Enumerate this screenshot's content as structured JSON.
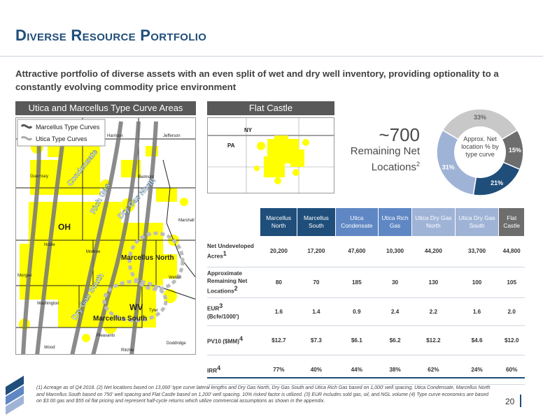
{
  "slide": {
    "title": "Diverse Resource Portfolio",
    "subtitle": "Attractive portfolio of diverse assets with an even split of wet and dry well inventory, providing optionality to a constantly evolving commodity price environment",
    "page_number": "20"
  },
  "left_panel": {
    "header": "Utica and Marcellus Type Curve Areas",
    "legend": [
      "Marcellus Type Curves",
      "Utica Type Curves"
    ],
    "map_labels": {
      "condensate": "Condensate",
      "rich_gas": "Rich Gas",
      "dry_gas_north": "Dry Gas North",
      "dry_gas_south": "Dry Gas South",
      "marcellus_north": "Marcellus North",
      "marcellus_south": "Marcellus South",
      "oh": "OH",
      "wv": "WV",
      "counties": [
        "Harrison",
        "Jefferson",
        "Guernsey",
        "Belmont",
        "Marshall",
        "Noble",
        "Monroe",
        "Wetzel",
        "Washington",
        "Tyler",
        "Pleasants",
        "Ritchie",
        "Doddridge",
        "Wood",
        "Morgan"
      ]
    }
  },
  "right_panel": {
    "header": "Flat Castle",
    "map_labels": [
      "NY",
      "PA"
    ],
    "remaining_value": "~700",
    "remaining_label_1": "Remaining Net",
    "remaining_label_2": "Locations",
    "remaining_sup": "2"
  },
  "donut": {
    "center_label": "Approx. Net location % by type curve",
    "slices": [
      {
        "label": "33%",
        "value": 33,
        "color": "#c8c8c8"
      },
      {
        "label": "15%",
        "value": 15,
        "color": "#6d6d6d"
      },
      {
        "label": "21%",
        "value": 21,
        "color": "#1f4e7a"
      },
      {
        "label": "31%",
        "value": 31,
        "color": "#9fb3d6"
      }
    ]
  },
  "table": {
    "columns": [
      "Marcellus North",
      "Marcellus South",
      "Utica Condensate",
      "Utica Rich Gas",
      "Utica Dry Gas North",
      "Utica Dry Gas South",
      "Flat Castle"
    ],
    "rows": [
      {
        "label": "Net Undeveloped Acres",
        "sup": "1",
        "values": [
          "20,200",
          "17,200",
          "47,600",
          "10,300",
          "44,200",
          "33,700",
          "44,800"
        ]
      },
      {
        "label": "Approximate Remaining Net Locations",
        "sup": "2",
        "values": [
          "80",
          "70",
          "185",
          "30",
          "130",
          "100",
          "105"
        ]
      },
      {
        "label": "EUR",
        "sup": "3",
        "label_suffix": "(Bcfe/1000')",
        "values": [
          "1.6",
          "1.4",
          "0.9",
          "2.4",
          "2.2",
          "1.6",
          "2.0"
        ]
      },
      {
        "label": "PV10 ($MM)",
        "sup": "4",
        "values": [
          "$12.7",
          "$7.3",
          "$6.1",
          "$6.2",
          "$12.2",
          "$4.6",
          "$12.0"
        ]
      },
      {
        "label": "IRR",
        "sup": "4",
        "values": [
          "77%",
          "40%",
          "44%",
          "38%",
          "62%",
          "24%",
          "60%"
        ]
      }
    ]
  },
  "footnote": "(1) Acreage as of Q4 2018.  (2) Net locations based on 13,000' type curve lateral lengths and Dry Gas North, Dry Gas South and Utica Rich Gas based on 1,000' well spacing, Utica Condensate, Marcellus North and Marcellus South based on 750' well spacing and Flat Castle based on 1,200' well spacing.  10% risked factor is utilized. (3)  EUR includes sold gas, oil, and NGL volume (4) Type curve economics are based on $3.00 gas and $55 oil flat pricing and represent half-cycle returns which utilize commercial assumptions as shown in the appendix."
}
